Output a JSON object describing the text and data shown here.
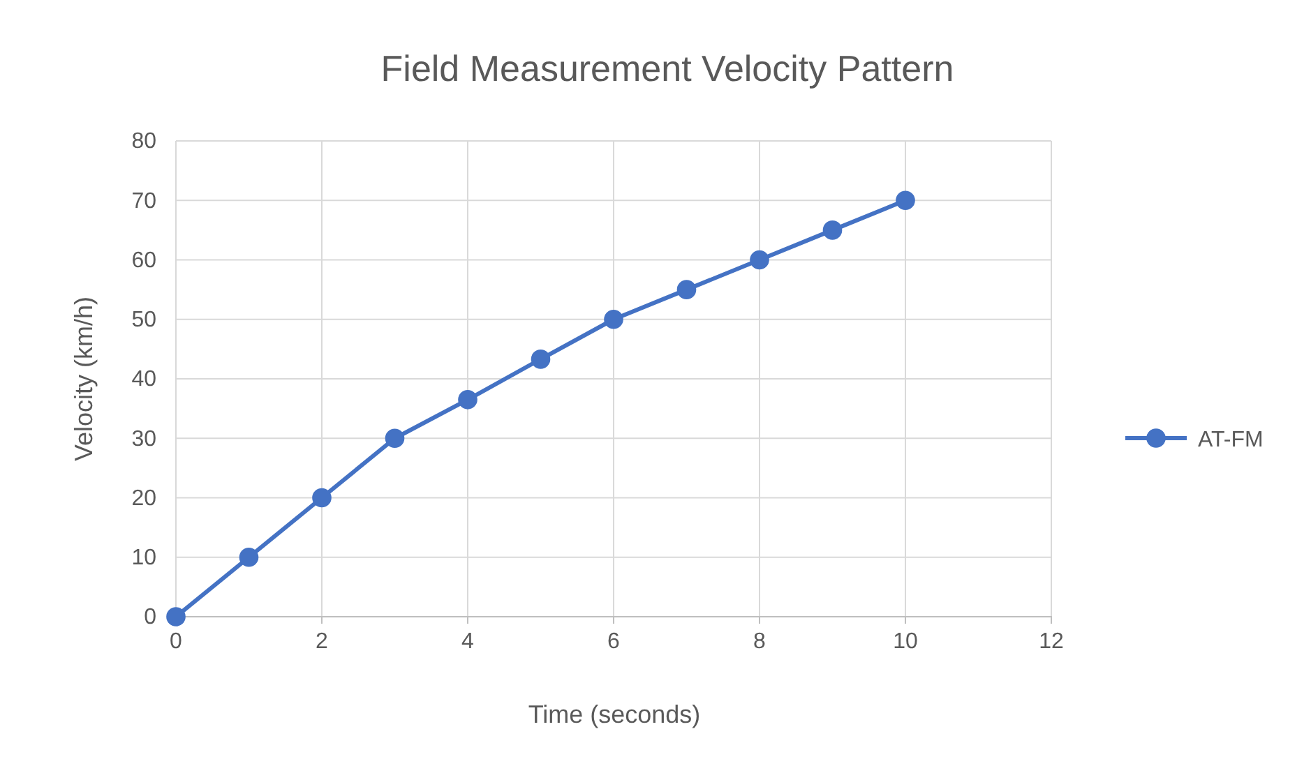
{
  "chart_data": {
    "type": "line",
    "title": "Field Measurement Velocity Pattern",
    "xlabel": "Time (seconds)",
    "ylabel": "Velocity (km/h)",
    "x": [
      0,
      1,
      2,
      3,
      4,
      5,
      6,
      7,
      8,
      9,
      10
    ],
    "series": [
      {
        "name": "AT-FM",
        "color": "#4472c4",
        "values": [
          0,
          10,
          20,
          30,
          36.5,
          43.3,
          50,
          55,
          60,
          65,
          70
        ]
      }
    ],
    "xlim": [
      0,
      12
    ],
    "xticks": [
      0,
      2,
      4,
      6,
      8,
      10,
      12
    ],
    "ylim": [
      0,
      80
    ],
    "yticks": [
      0,
      10,
      20,
      30,
      40,
      50,
      60,
      70,
      80
    ],
    "grid": true,
    "legend": "right",
    "marker": "circle",
    "line_style": "solid"
  }
}
